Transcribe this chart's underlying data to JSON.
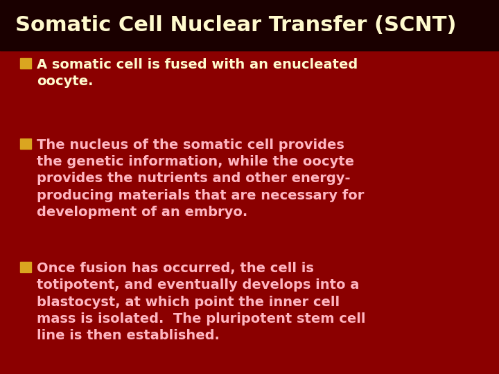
{
  "background_color": "#8B0000",
  "title_bar_color": "#1a0000",
  "title": "Somatic Cell Nuclear Transfer (SCNT)",
  "title_color": "#FFFACD",
  "title_fontsize": 22,
  "bullet1_color": "#FFFACD",
  "bullet2_color": "#FFB6C1",
  "bullet3_color": "#FFB6C1",
  "bullet1": "A somatic cell is fused with an enucleated\noocyte.",
  "bullet2": "The nucleus of the somatic cell provides\nthe genetic information, while the oocyte\nprovides the nutrients and other energy-\nproducing materials that are necessary for\ndevelopment of an embryo.",
  "bullet3": "Once fusion has occurred, the cell is\ntotipotent, and eventually develops into a\nblastocyst, at which point the inner cell\nmass is isolated.  The pluripotent stem cell\nline is then established.",
  "bullet_fontsize": 14,
  "square_color": "#DAA520",
  "title_bar_height": 0.135
}
